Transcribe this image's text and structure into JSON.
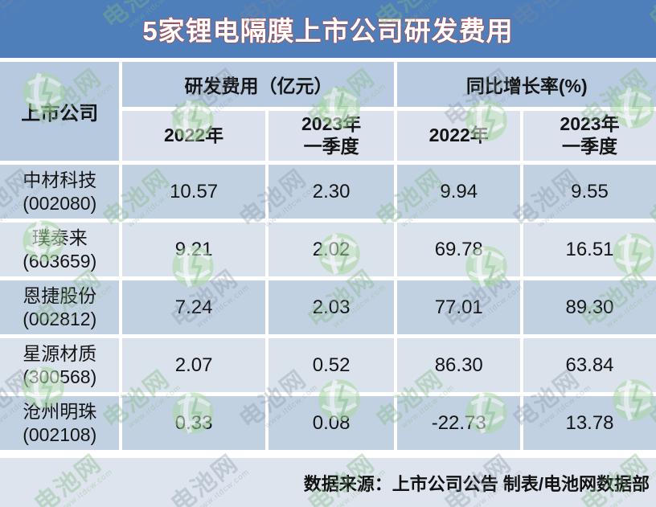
{
  "title": "5家锂电隔膜上市公司研发费用",
  "watermark": {
    "brand": "电池网",
    "url": "www.itdcw.com"
  },
  "table": {
    "corner_header": "上市公司",
    "groups": [
      {
        "label": "研发费用（亿元）"
      },
      {
        "label": "同比增长率(%)"
      }
    ],
    "period_headers": [
      "2022年",
      "2023年\n一季度",
      "2022年",
      "2023年\n一季度"
    ],
    "rows": [
      {
        "name": "中材科技",
        "code": "(002080)",
        "values": [
          "10.57",
          "2.30",
          "9.94",
          "9.55"
        ]
      },
      {
        "name": "璞泰来",
        "code": "(603659)",
        "values": [
          "9.21",
          "2.02",
          "69.78",
          "16.51"
        ]
      },
      {
        "name": "恩捷股份",
        "code": "(002812)",
        "values": [
          "7.24",
          "2.03",
          "77.01",
          "89.30"
        ]
      },
      {
        "name": "星源材质",
        "code": "(300568)",
        "values": [
          "2.07",
          "0.52",
          "86.30",
          "63.84"
        ]
      },
      {
        "name": "沧州明珠",
        "code": "(002108)",
        "values": [
          "0.33",
          "0.08",
          "-22.73",
          "13.78"
        ]
      }
    ]
  },
  "footer": {
    "source_note": "数据来源：上市公司公告 制表/电池网数据部"
  },
  "colors": {
    "title_bar": "#4e7fba",
    "title_text": "#ffffff",
    "title_outline": "#c13e33",
    "header_dark": "#b9cbe0",
    "header_light": "#dbe2ed",
    "row_dark": "#c2d1e2",
    "row_light": "#dae2ec",
    "footer_bg": "#dde4ee",
    "watermark_green": "#84b880"
  },
  "chart_data": {
    "type": "table",
    "title": "5家锂电隔膜上市公司研发费用",
    "column_groups": [
      "上市公司",
      "研发费用（亿元）",
      "研发费用（亿元）",
      "同比增长率(%)",
      "同比增长率(%)"
    ],
    "columns": [
      "上市公司",
      "研发费用（亿元）2022年",
      "研发费用（亿元）2023年一季度",
      "同比增长率(%) 2022年",
      "同比增长率(%) 2023年一季度"
    ],
    "rows": [
      [
        "中材科技(002080)",
        10.57,
        2.3,
        9.94,
        9.55
      ],
      [
        "璞泰来(603659)",
        9.21,
        2.02,
        69.78,
        16.51
      ],
      [
        "恩捷股份(002812)",
        7.24,
        2.03,
        77.01,
        89.3
      ],
      [
        "星源材质(300568)",
        2.07,
        0.52,
        86.3,
        63.84
      ],
      [
        "沧州明珠(002108)",
        0.33,
        0.08,
        -22.73,
        13.78
      ]
    ],
    "source": "数据来源：上市公司公告 制表/电池网数据部"
  }
}
